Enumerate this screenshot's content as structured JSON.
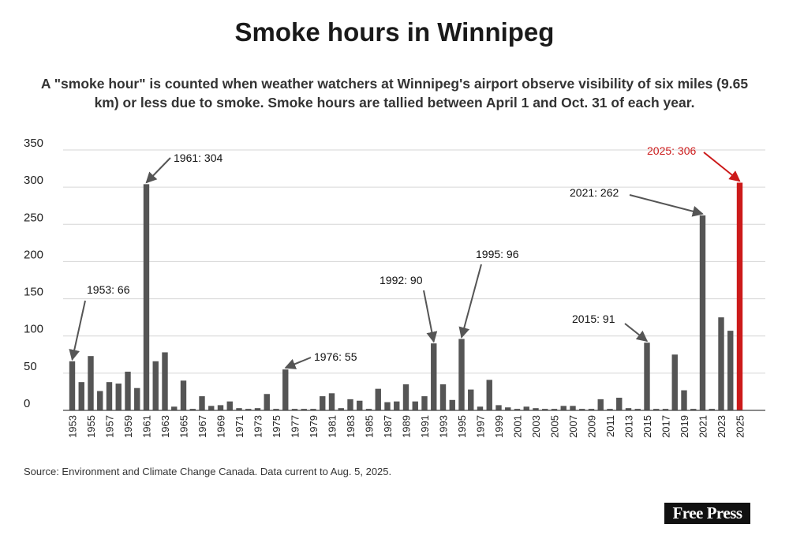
{
  "title": "Smoke hours in Winnipeg",
  "subtitle": "A \"smoke hour\" is counted when weather watchers at Winnipeg's airport observe visibility of six miles (9.65 km) or less due to smoke. Smoke hours are tallied between April 1 and Oct. 31 of each year.",
  "source": "Source: Environment and Climate Change Canada. Data current to Aug. 5, 2025.",
  "logo_text": "Free Press",
  "colors": {
    "bar": "#555555",
    "highlight": "#cc1a1a",
    "grid": "#d6d6d6",
    "annotation": "#555555"
  },
  "chart_data": {
    "type": "bar",
    "x": [
      1953,
      1954,
      1955,
      1956,
      1957,
      1958,
      1959,
      1960,
      1961,
      1962,
      1963,
      1964,
      1965,
      1966,
      1967,
      1968,
      1969,
      1970,
      1971,
      1972,
      1973,
      1974,
      1975,
      1976,
      1977,
      1978,
      1979,
      1980,
      1981,
      1982,
      1983,
      1984,
      1985,
      1986,
      1987,
      1988,
      1989,
      1990,
      1991,
      1992,
      1993,
      1994,
      1995,
      1996,
      1997,
      1998,
      1999,
      2000,
      2001,
      2002,
      2003,
      2004,
      2005,
      2006,
      2007,
      2008,
      2009,
      2010,
      2011,
      2012,
      2013,
      2014,
      2015,
      2016,
      2017,
      2018,
      2019,
      2020,
      2021,
      2022,
      2023,
      2024,
      2025
    ],
    "values": [
      66,
      38,
      73,
      26,
      38,
      36,
      52,
      30,
      304,
      66,
      78,
      5,
      40,
      2,
      19,
      6,
      7,
      12,
      3,
      2,
      3,
      22,
      2,
      55,
      2,
      2,
      2,
      19,
      23,
      3,
      15,
      13,
      2,
      29,
      11,
      12,
      35,
      12,
      19,
      90,
      35,
      14,
      96,
      28,
      5,
      41,
      7,
      4,
      2,
      5,
      3,
      2,
      2,
      6,
      6,
      2,
      2,
      15,
      2,
      17,
      3,
      2,
      91,
      2,
      2,
      75,
      27,
      2,
      262,
      2,
      125,
      107,
      306
    ],
    "tick_labels": [
      "1953",
      "1955",
      "1957",
      "1959",
      "1961",
      "1963",
      "1965",
      "1967",
      "1969",
      "1971",
      "1973",
      "1975",
      "1977",
      "1979",
      "1981",
      "1983",
      "1985",
      "1987",
      "1989",
      "1991",
      "1993",
      "1995",
      "1997",
      "1999",
      "2001",
      "2003",
      "2005",
      "2007",
      "2009",
      "2011",
      "2013",
      "2015",
      "2017",
      "2019",
      "2021",
      "2023",
      "2025"
    ],
    "y_ticks": [
      "0",
      "50",
      "100",
      "150",
      "200",
      "250",
      "300",
      "350"
    ],
    "ylim": [
      0,
      350
    ],
    "highlight_year": 2025,
    "grid": true,
    "annotations": [
      {
        "year": 1953,
        "text": "1953: 66"
      },
      {
        "year": 1961,
        "text": "1961: 304"
      },
      {
        "year": 1976,
        "text": "1976: 55"
      },
      {
        "year": 1992,
        "text": "1992: 90"
      },
      {
        "year": 1995,
        "text": "1995: 96"
      },
      {
        "year": 2015,
        "text": "2015: 91"
      },
      {
        "year": 2021,
        "text": "2021: 262"
      },
      {
        "year": 2025,
        "text": "2025: 306",
        "highlight": true
      }
    ]
  }
}
